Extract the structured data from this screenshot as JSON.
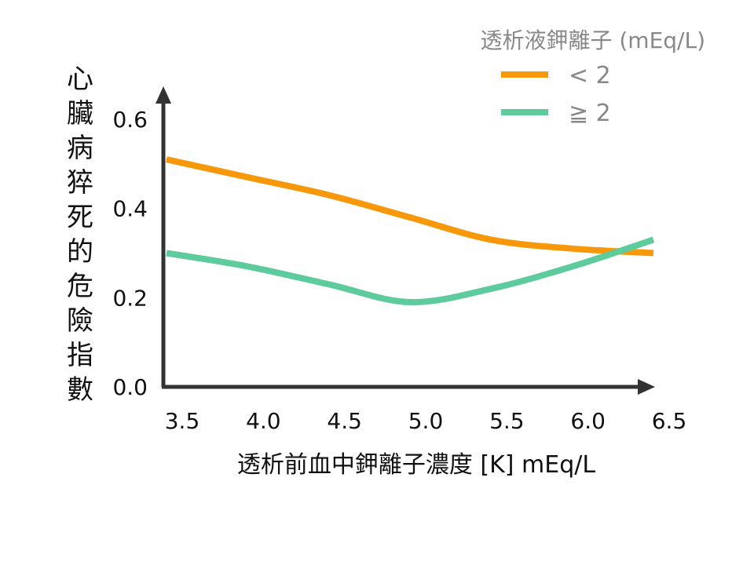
{
  "chart_data": {
    "type": "line",
    "xlabel": "透析前血中鉀離子濃度 [K]  mEq/L",
    "ylabel": "心臟病猝死的危險指數",
    "xlim": [
      3.5,
      6.5
    ],
    "ylim": [
      0,
      0.6
    ],
    "xticks": [
      "3.5",
      "4.0",
      "4.5",
      "5.0",
      "5.5",
      "6.0",
      "6.5"
    ],
    "yticks": [
      "0.0",
      "0.2",
      "0.4",
      "0.6"
    ],
    "legend": {
      "title": "透析液鉀離子 (mEq/L)",
      "position": "top-right"
    },
    "series": [
      {
        "name": "< 2",
        "color": "#F7970A",
        "x": [
          3.5,
          4.0,
          4.5,
          5.0,
          5.5,
          6.0,
          6.5
        ],
        "y": [
          0.51,
          0.47,
          0.43,
          0.38,
          0.33,
          0.31,
          0.3
        ]
      },
      {
        "name": "≧ 2",
        "color": "#5DCB9B",
        "x": [
          3.5,
          4.0,
          4.5,
          5.0,
          5.5,
          6.0,
          6.5
        ],
        "y": [
          0.3,
          0.27,
          0.23,
          0.19,
          0.22,
          0.27,
          0.33
        ]
      }
    ],
    "grid": false
  }
}
